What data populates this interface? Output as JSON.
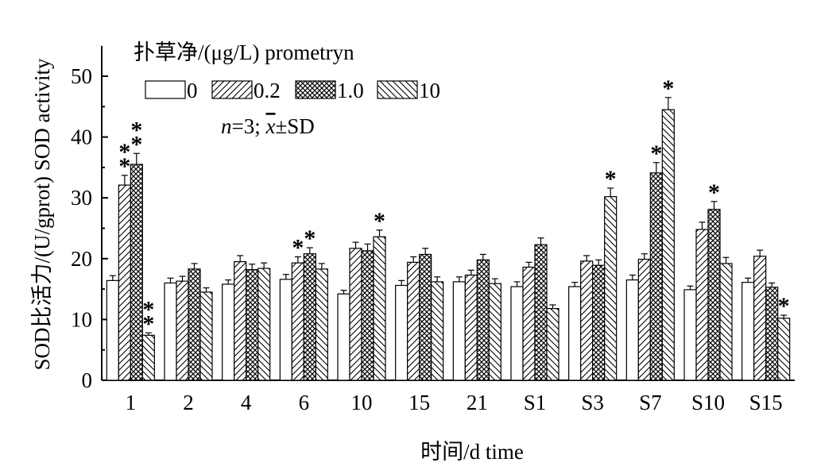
{
  "chart_data": {
    "type": "bar",
    "ylabel": "SOD比活力/(U/gprot) SOD activity",
    "xlabel": "时间/d time",
    "ylim": [
      0,
      55
    ],
    "yticks": [
      0,
      10,
      20,
      30,
      40,
      50
    ],
    "categories": [
      "1",
      "2",
      "4",
      "6",
      "10",
      "15",
      "21",
      "S1",
      "S3",
      "S7",
      "S10",
      "S15"
    ],
    "legend": {
      "title": "扑草净/(μg/L) prometryn",
      "placement": "top-left",
      "note": "n=3; x̄±SD",
      "note_parts": {
        "n": "n",
        "rest": "=3; ",
        "xbar": "x",
        "sd": "±SD"
      }
    },
    "series": [
      {
        "name": "0",
        "pattern": "blank",
        "values": [
          16.4,
          16.0,
          15.8,
          16.6,
          14.2,
          15.6,
          16.2,
          15.4,
          15.4,
          16.5,
          14.9,
          16.1
        ],
        "errors": [
          0.8,
          0.8,
          0.7,
          0.8,
          0.6,
          0.8,
          0.8,
          0.8,
          0.7,
          0.8,
          0.6,
          0.7
        ],
        "stars": [
          0,
          0,
          0,
          0,
          0,
          0,
          0,
          0,
          0,
          0,
          0,
          0
        ]
      },
      {
        "name": "0.2",
        "pattern": "forward-hatch",
        "values": [
          32.1,
          16.3,
          19.5,
          19.3,
          21.7,
          19.4,
          17.3,
          18.6,
          19.6,
          19.9,
          24.8,
          20.4
        ],
        "errors": [
          1.6,
          0.8,
          1.0,
          1.0,
          1.0,
          0.9,
          0.8,
          0.8,
          0.9,
          0.9,
          1.2,
          1.0
        ],
        "stars": [
          2,
          0,
          0,
          1,
          0,
          0,
          0,
          0,
          0,
          0,
          0,
          0
        ]
      },
      {
        "name": "1.0",
        "pattern": "crosshatch",
        "values": [
          35.5,
          18.3,
          18.2,
          20.8,
          21.3,
          20.7,
          19.8,
          22.3,
          18.9,
          34.1,
          28.1,
          15.3
        ],
        "errors": [
          1.8,
          0.9,
          0.9,
          1.0,
          1.1,
          1.0,
          0.9,
          1.1,
          0.9,
          1.7,
          1.3,
          0.7
        ],
        "stars": [
          2,
          0,
          0,
          1,
          0,
          0,
          0,
          0,
          0,
          1,
          1,
          0
        ]
      },
      {
        "name": "10",
        "pattern": "back-hatch",
        "values": [
          7.4,
          14.5,
          18.4,
          18.3,
          23.6,
          16.2,
          15.9,
          11.8,
          30.2,
          44.5,
          19.2,
          10.2
        ],
        "errors": [
          0.4,
          0.7,
          0.9,
          0.9,
          1.1,
          0.8,
          0.8,
          0.6,
          1.4,
          2.0,
          1.0,
          0.5
        ],
        "stars": [
          2,
          0,
          0,
          0,
          1,
          0,
          0,
          0,
          1,
          1,
          0,
          1
        ]
      }
    ]
  }
}
